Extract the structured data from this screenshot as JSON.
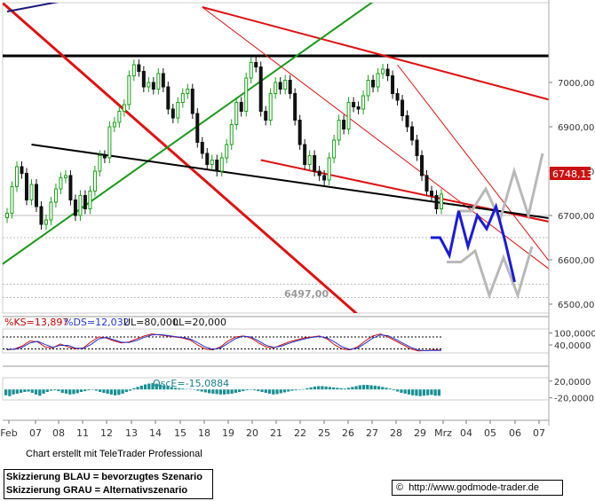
{
  "chart_data": [
    {
      "type": "candlestick",
      "x": [
        "Feb",
        "07",
        "08",
        "11",
        "12",
        "13",
        "14",
        "15",
        "18",
        "19",
        "20",
        "21",
        "22",
        "25",
        "26",
        "27",
        "28",
        "29",
        "Mrz",
        "04",
        "05",
        "06",
        "07"
      ],
      "ylim": [
        6480,
        7180
      ],
      "y_ticks": [
        6500,
        6600,
        6700,
        6800,
        6900,
        7000
      ],
      "y_tick_labels": [
        "6500,00",
        "6600,00",
        "6700,00",
        "6800,00",
        "6900,00",
        "7000,00"
      ],
      "last_price_label": "6748,13",
      "last_price": 6748.13,
      "low_annotation": "6497,00",
      "low_value": 6497,
      "close_series": [
        6705,
        6765,
        6810,
        6795,
        6735,
        6770,
        6720,
        6680,
        6690,
        6730,
        6760,
        6785,
        6790,
        6735,
        6700,
        6745,
        6715,
        6755,
        6800,
        6835,
        6830,
        6900,
        6910,
        6935,
        6950,
        7015,
        7040,
        7025,
        6990,
        7000,
        6985,
        7020,
        6990,
        6940,
        6920,
        6955,
        6975,
        6985,
        6930,
        6865,
        6840,
        6815,
        6825,
        6800,
        6830,
        6860,
        6905,
        6955,
        6935,
        7010,
        7045,
        7035,
        6935,
        6915,
        6975,
        7000,
        6985,
        7005,
        6975,
        6915,
        6860,
        6815,
        6835,
        6800,
        6790,
        6780,
        6830,
        6870,
        6915,
        6895,
        6955,
        6945,
        6940,
        6970,
        7005,
        6990,
        7020,
        7030,
        7015,
        6975,
        6960,
        6925,
        6900,
        6870,
        6835,
        6790,
        6755,
        6745,
        6715,
        6748.13
      ],
      "ohlc_note": "",
      "horizontal_lines": [
        7060,
        6700,
        6650,
        6545,
        6515
      ],
      "scenario_blue": [
        6650,
        6650,
        6610,
        6710,
        6630,
        6700,
        6670,
        6720,
        6640,
        6550
      ],
      "scenario_grey_upper": [
        6710,
        6710,
        6760,
        6690,
        6800,
        6700,
        6840
      ],
      "scenario_grey_lower": [
        6595,
        6595,
        6620,
        6520,
        6605,
        6520,
        6630
      ]
    },
    {
      "type": "line",
      "indicator": "Stochastic",
      "labels": {
        "ks": "%KS=13,897",
        "ds": "%DS=12,032",
        "ul": "UL=80,000",
        "ll": "LL=20,000"
      },
      "ylim": [
        0,
        120
      ],
      "y_tick_labels": [
        "100,0000",
        "40,0000"
      ],
      "y_ticks": [
        100,
        40
      ],
      "upper_level": 80,
      "lower_level": 20,
      "series": [
        {
          "name": "%KS",
          "values": [
            15,
            20,
            35,
            60,
            55,
            30,
            25,
            45,
            30,
            20,
            25,
            55,
            80,
            75,
            60,
            50,
            55,
            70,
            85,
            95,
            90,
            85,
            80,
            75,
            65,
            40,
            20,
            15,
            30,
            60,
            80,
            85,
            75,
            50,
            30,
            25,
            40,
            55,
            65,
            75,
            80,
            85,
            70,
            40,
            20,
            15,
            30,
            60,
            85,
            95,
            80,
            60,
            40,
            20,
            10,
            12,
            15,
            13.897
          ]
        },
        {
          "name": "%DS",
          "values": [
            18,
            18,
            28,
            50,
            58,
            42,
            28,
            38,
            38,
            24,
            22,
            42,
            70,
            78,
            66,
            54,
            52,
            62,
            78,
            90,
            92,
            88,
            82,
            78,
            70,
            52,
            30,
            18,
            24,
            48,
            72,
            84,
            80,
            60,
            38,
            28,
            34,
            48,
            60,
            70,
            78,
            82,
            76,
            54,
            30,
            18,
            24,
            48,
            74,
            90,
            86,
            68,
            48,
            28,
            14,
            11,
            13,
            12.032
          ]
        }
      ]
    },
    {
      "type": "bar",
      "indicator": "Oscillator",
      "label": "OscE=-15,0884",
      "faint_label": "",
      "ylim": [
        -25,
        28
      ],
      "y_tick_labels": [
        "20,0000",
        "-20,0000"
      ],
      "y_ticks": [
        20,
        -20
      ],
      "values": [
        -14,
        -16,
        -12,
        -10,
        -8,
        -6,
        -5,
        -8,
        -12,
        -15,
        -10,
        -6,
        -3,
        -2,
        -4,
        -8,
        -10,
        -12,
        -11,
        -9,
        -6,
        -4,
        -2,
        -1,
        -3,
        -6,
        -8,
        -10,
        -12,
        -14,
        -13,
        -10,
        -6,
        -3,
        3,
        6,
        9,
        12,
        14,
        15,
        14,
        12,
        10,
        8,
        6,
        4,
        3,
        2,
        1,
        1,
        -1,
        -3,
        -5,
        -7,
        -9,
        -10,
        -11,
        -12,
        -12,
        -11,
        -10,
        -8,
        -6,
        -4,
        -2,
        -1,
        -2,
        -4,
        -6,
        -8,
        -10,
        -12,
        -11,
        -9,
        -7,
        -5,
        -3,
        -2,
        -1,
        1,
        3,
        5,
        7,
        8,
        8,
        7,
        6,
        5,
        4,
        3,
        2,
        4,
        6,
        8,
        10,
        11,
        11,
        10,
        9,
        8,
        6,
        4,
        2,
        -2,
        -5,
        -8,
        -10,
        -12,
        -14,
        -15,
        -16,
        -15,
        -14,
        -13,
        -15,
        -15.0884
      ]
    }
  ],
  "texts": {
    "credit": "Chart erstellt mit TeleTrader Professional",
    "legend_blue": "Skizzierung BLAU = bevorzugtes Szenario",
    "legend_grey": "Skizzierung GRAU = Alternativszenario",
    "url": "http://www.godmode-trader.de",
    "copyright": "©"
  },
  "colors": {
    "up": "#1aa01a",
    "down": "#111111",
    "trend_red": "#e01010",
    "trend_green": "#1a9a1a",
    "trend_black": "#000000",
    "trend_navy": "#1a1a7a",
    "scenario_blue": "#1a1adc",
    "scenario_grey": "#b8b8b8",
    "ks": "#d01010",
    "ds": "#2233cc",
    "osc": "#1a8f94",
    "last_price_bg": "#cc1111"
  }
}
